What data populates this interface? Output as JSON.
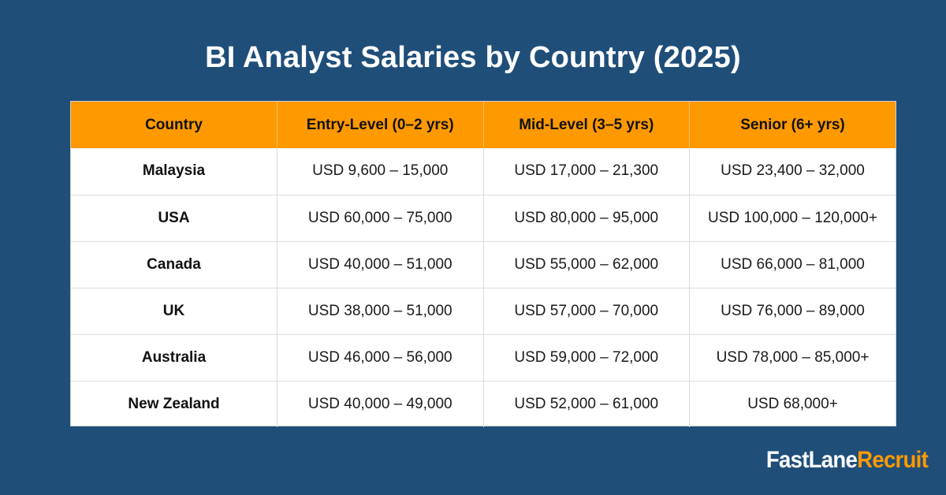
{
  "title": "BI Analyst Salaries by Country (2025)",
  "table": {
    "headers": [
      "Country",
      "Entry-Level (0–2 yrs)",
      "Mid-Level (3–5 yrs)",
      "Senior (6+ yrs)"
    ],
    "rows": [
      [
        "Malaysia",
        "USD 9,600 – 15,000",
        "USD 17,000 – 21,300",
        "USD 23,400 – 32,000"
      ],
      [
        "USA",
        "USD 60,000 – 75,000",
        "USD 80,000 – 95,000",
        "USD 100,000 – 120,000+"
      ],
      [
        "Canada",
        "USD 40,000 – 51,000",
        "USD 55,000 – 62,000",
        "USD 66,000 – 81,000"
      ],
      [
        "UK",
        "USD 38,000 – 51,000",
        "USD 57,000 – 70,000",
        "USD 76,000 – 89,000"
      ],
      [
        "Australia",
        "USD 46,000 – 56,000",
        "USD 59,000 – 72,000",
        "USD 78,000 – 85,000+"
      ],
      [
        "New Zealand",
        "USD 40,000 – 49,000",
        "USD 52,000 – 61,000",
        "USD 68,000+"
      ]
    ]
  },
  "brand": {
    "part1": "FastLane",
    "part2": "Recruit"
  },
  "colors": {
    "background": "#1f4e79",
    "header": "#ff9900",
    "brand_accent": "#ff9900"
  }
}
